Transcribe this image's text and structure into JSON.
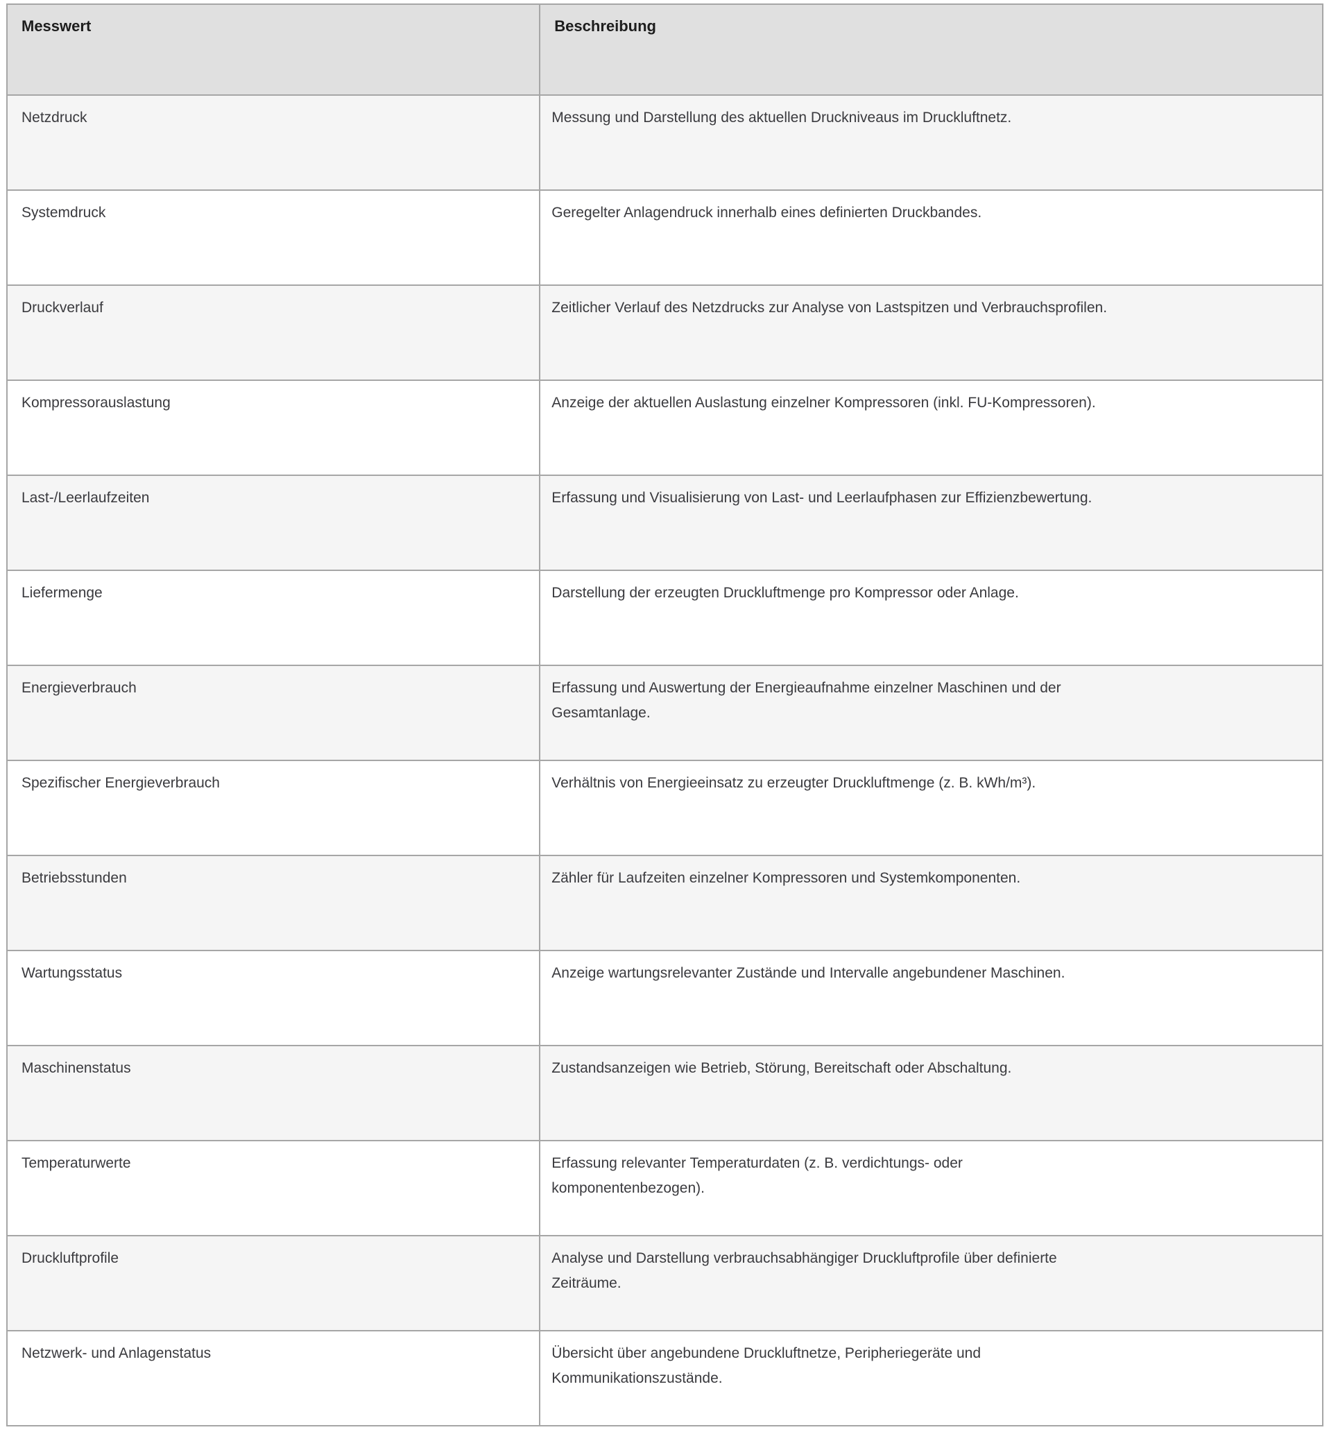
{
  "colors": {
    "header_background": "#e0e0e0",
    "row_alt_background": "#f5f5f5",
    "row_background": "#ffffff",
    "border": "#a6a6a6",
    "header_text": "#1d1d1d",
    "body_text": "#3a3a3e"
  },
  "table": {
    "columns": [
      {
        "id": "messwert",
        "label": "Messwert"
      },
      {
        "id": "beschreibung",
        "label": "Beschreibung"
      }
    ],
    "rows": [
      {
        "messwert": "Netzdruck",
        "beschreibung": "Messung und Darstellung des aktuellen Druckniveaus im Druckluftnetz."
      },
      {
        "messwert": "Systemdruck",
        "beschreibung": "Geregelter Anlagendruck innerhalb eines definierten Druckbandes."
      },
      {
        "messwert": "Druckverlauf",
        "beschreibung": "Zeitlicher Verlauf des Netzdrucks zur Analyse von Lastspitzen und Verbrauchsprofilen."
      },
      {
        "messwert": "Kompressorauslastung",
        "beschreibung": "Anzeige der aktuellen Auslastung einzelner Kompressoren (inkl. FU-Kompressoren)."
      },
      {
        "messwert": "Last-/Leerlaufzeiten",
        "beschreibung": "Erfassung und Visualisierung von Last- und Leerlaufphasen zur Effizienzbewertung."
      },
      {
        "messwert": "Liefermenge",
        "beschreibung": "Darstellung der erzeugten Druckluftmenge pro Kompressor oder Anlage."
      },
      {
        "messwert": "Energieverbrauch",
        "beschreibung": "Erfassung und Auswertung der Energieaufnahme einzelner Maschinen und der\nGesamtanlage."
      },
      {
        "messwert": "Spezifischer Energieverbrauch",
        "beschreibung": "Verhältnis von Energieeinsatz zu erzeugter Druckluftmenge (z. B. kWh/m³)."
      },
      {
        "messwert": "Betriebsstunden",
        "beschreibung": "Zähler für Laufzeiten einzelner Kompressoren und Systemkomponenten."
      },
      {
        "messwert": "Wartungsstatus",
        "beschreibung": "Anzeige wartungsrelevanter Zustände und Intervalle angebundener Maschinen."
      },
      {
        "messwert": "Maschinenstatus",
        "beschreibung": "Zustandsanzeigen wie Betrieb, Störung, Bereitschaft oder Abschaltung."
      },
      {
        "messwert": "Temperaturwerte",
        "beschreibung": "Erfassung relevanter Temperaturdaten (z. B. verdichtungs- oder\nkomponentenbezogen)."
      },
      {
        "messwert": "Druckluftprofile",
        "beschreibung": "Analyse und Darstellung verbrauchsabhängiger Druckluftprofile über definierte\nZeiträume."
      },
      {
        "messwert": "Netzwerk- und Anlagenstatus",
        "beschreibung": "Übersicht über angebundene Druckluftnetze, Peripheriegeräte und\nKommunikationszustände."
      }
    ]
  }
}
